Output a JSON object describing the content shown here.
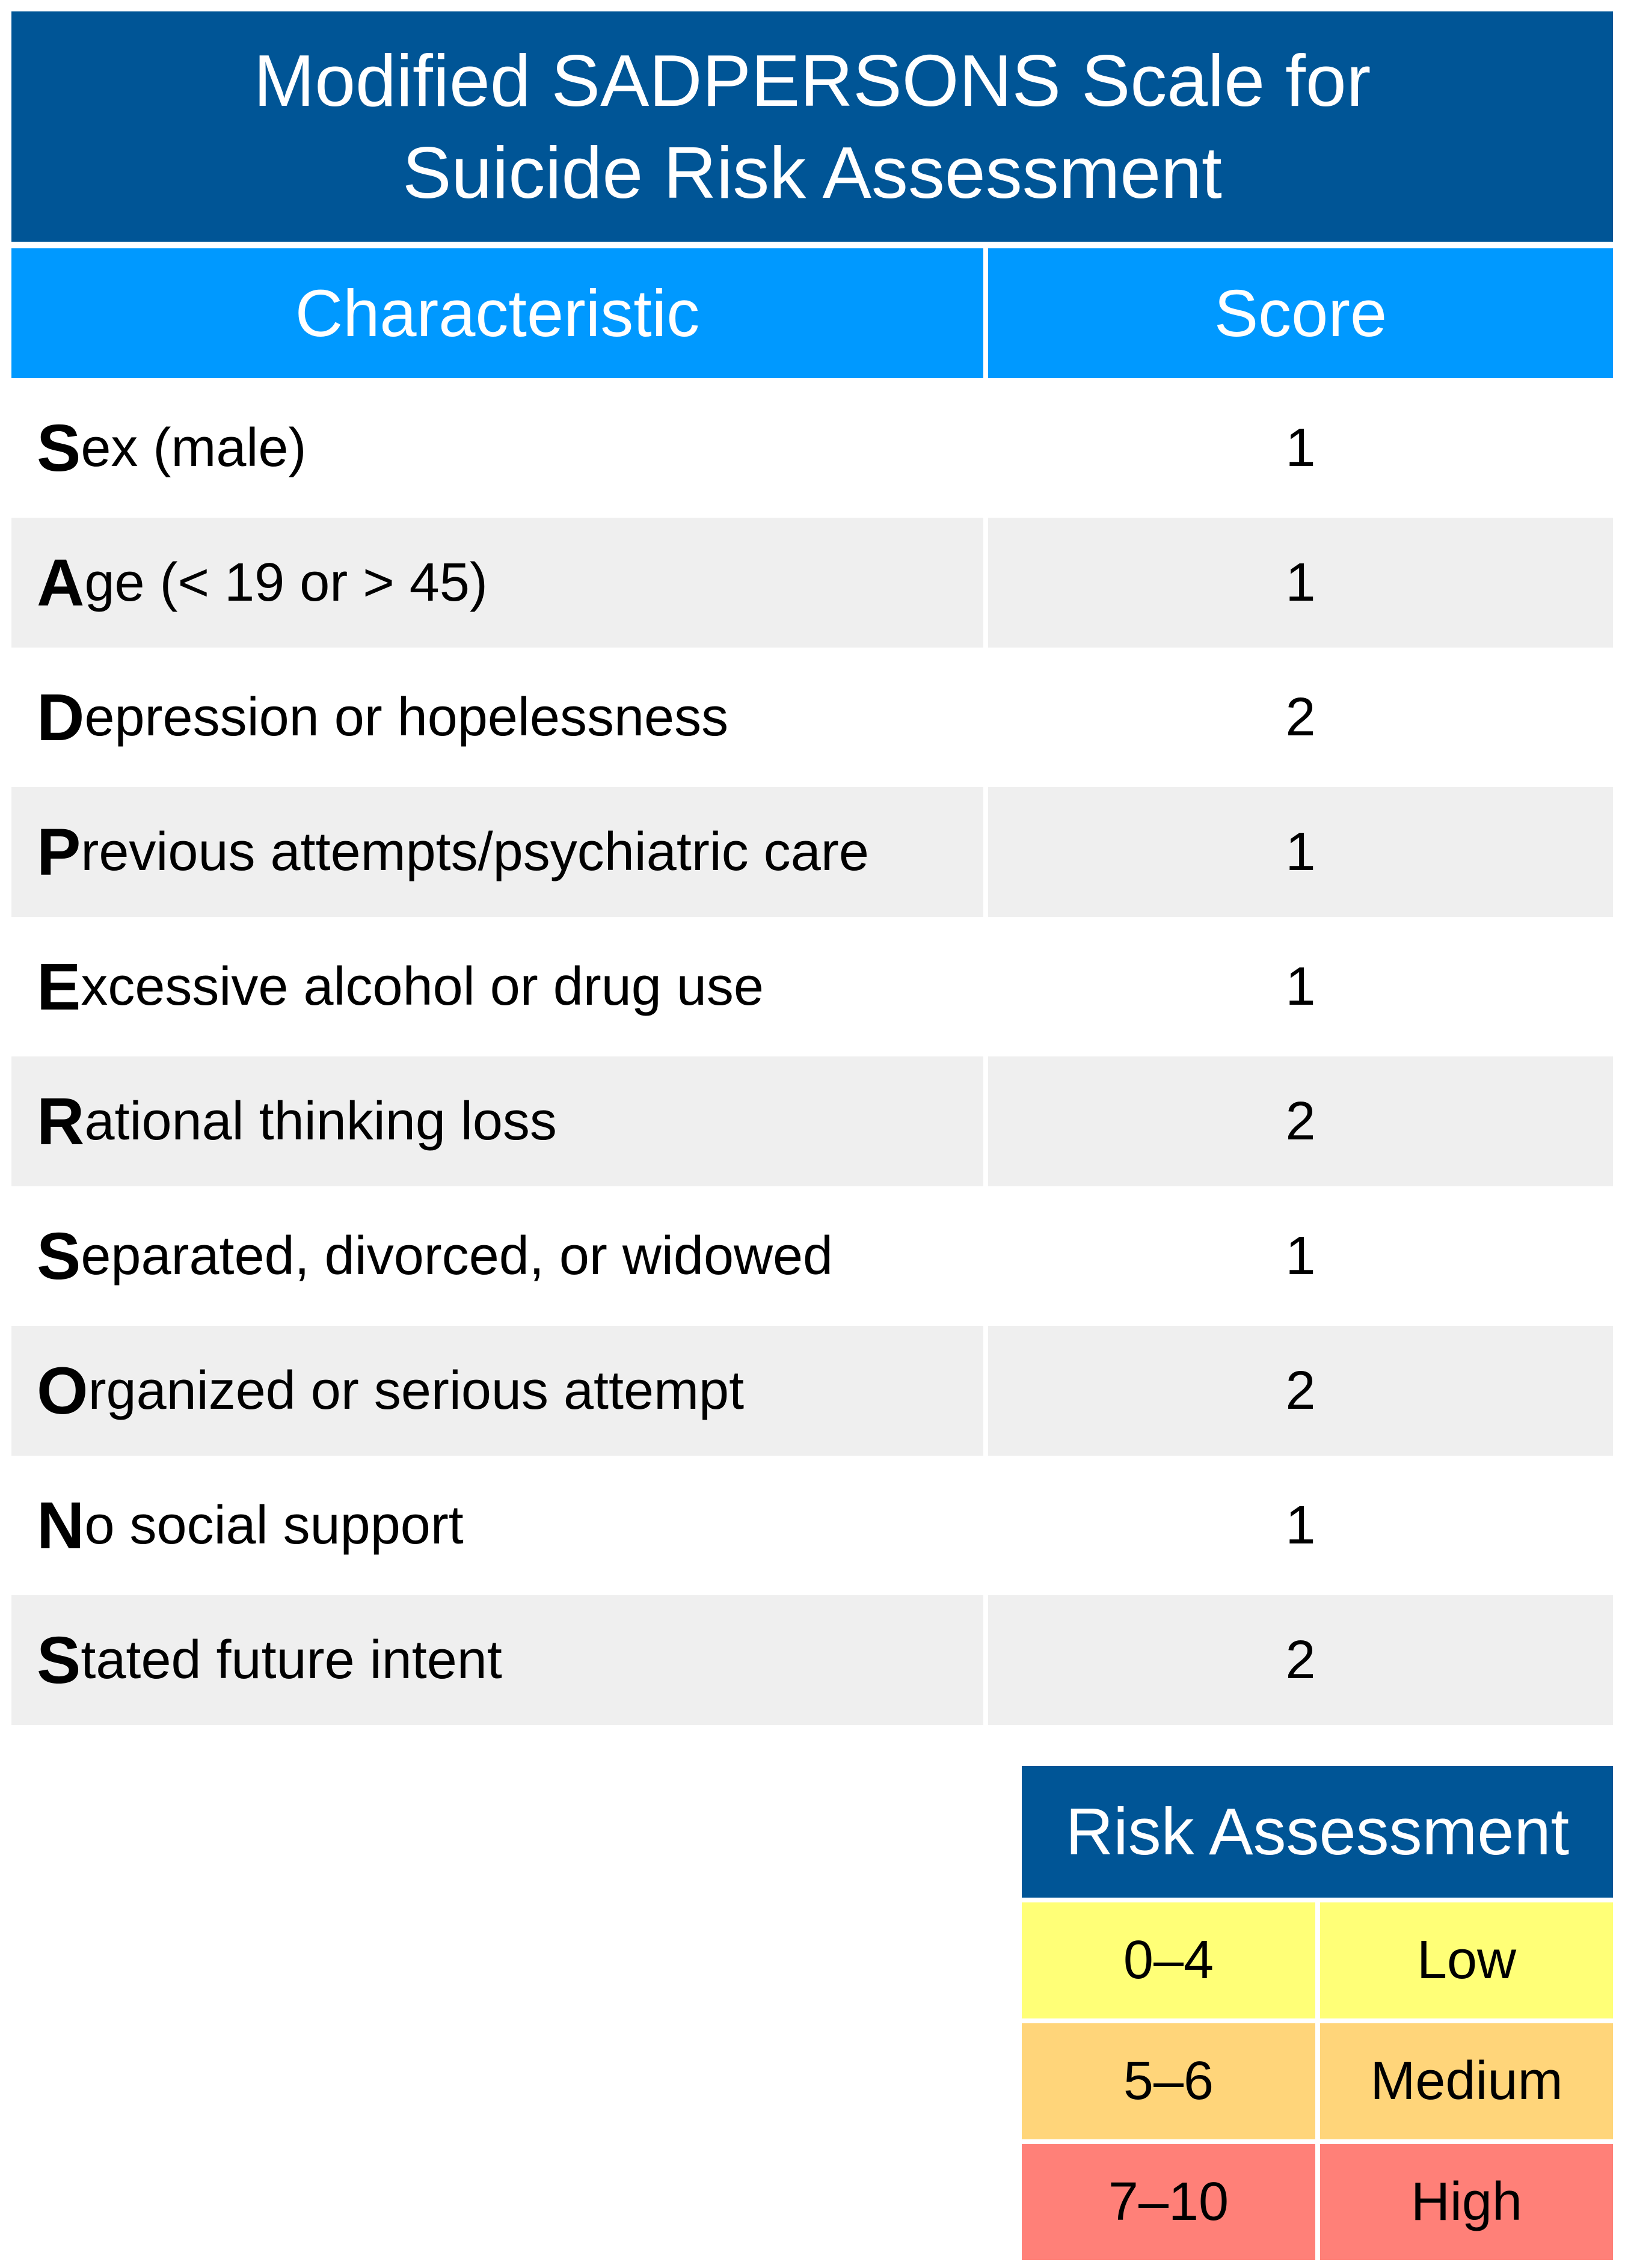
{
  "title": {
    "line1": "Modified SADPERSONS Scale for",
    "line2": "Suicide Risk Assessment"
  },
  "table": {
    "headers": {
      "characteristic": "Characteristic",
      "score": "Score"
    },
    "rows": [
      {
        "initial": "S",
        "rest": "ex (male)",
        "score": "1"
      },
      {
        "initial": "A",
        "rest": "ge (< 19 or > 45)",
        "score": "1"
      },
      {
        "initial": "D",
        "rest": "epression or hopelessness",
        "score": "2"
      },
      {
        "initial": "P",
        "rest": "revious attempts/psychiatric care",
        "score": "1"
      },
      {
        "initial": "E",
        "rest": "xcessive alcohol or drug use",
        "score": "1"
      },
      {
        "initial": "R",
        "rest": "ational thinking loss",
        "score": "2"
      },
      {
        "initial": "S",
        "rest": "eparated, divorced, or widowed",
        "score": "1"
      },
      {
        "initial": "O",
        "rest": "rganized or serious attempt",
        "score": "2"
      },
      {
        "initial": "N",
        "rest": "o social support",
        "score": "1"
      },
      {
        "initial": "S",
        "rest": "tated future intent",
        "score": "2"
      }
    ]
  },
  "risk_assessment": {
    "title": "Risk Assessment",
    "rows": [
      {
        "range": "0–4",
        "level": "Low",
        "color": "#ffff77"
      },
      {
        "range": "5–6",
        "level": "Medium",
        "color": "#ffd57a"
      },
      {
        "range": "7–10",
        "level": "High",
        "color": "#ff8078"
      }
    ]
  },
  "colors": {
    "title_bg": "#005596",
    "header_bg": "#0099ff",
    "row_shade": "#efefef"
  }
}
